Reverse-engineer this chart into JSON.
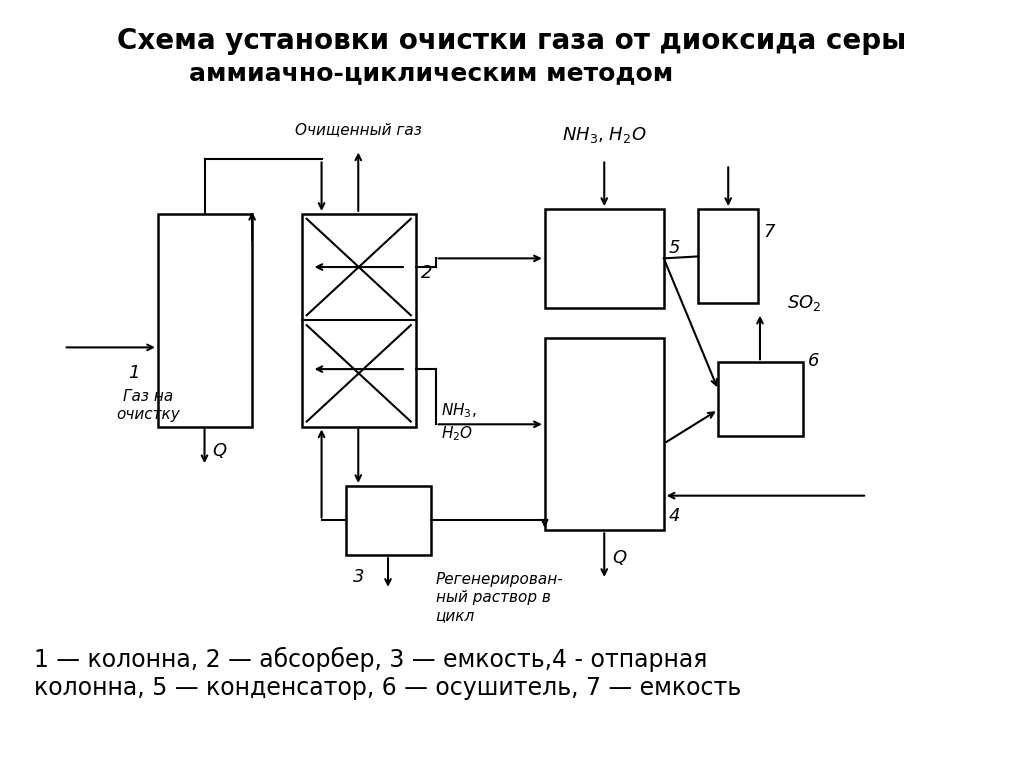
{
  "title_line1": "Схема установки очистки газа от диоксида серы",
  "title_line2": "аммиачно-циклическим методом",
  "legend_text": "1 — колонна, 2 — абсорбер, 3 — емкость,4 - отпарная\nколонна, 5 — конденсатор, 6 — осушитель, 7 — емкость",
  "bg_color": "#ffffff",
  "title_fontsize": 20,
  "subtitle_fontsize": 18,
  "legend_fontsize": 17
}
